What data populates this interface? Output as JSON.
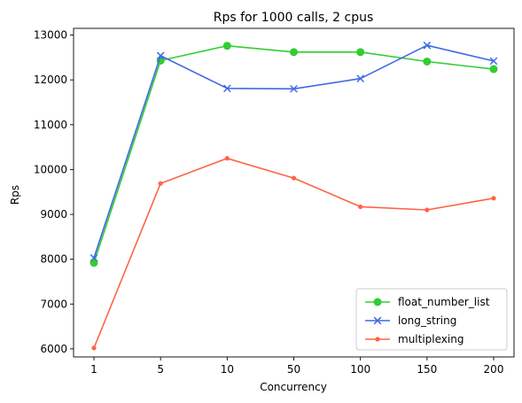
{
  "chart_data": {
    "type": "line",
    "title": "Rps for 1000 calls, 2 cpus",
    "xlabel": "Concurrency",
    "ylabel": "Rps",
    "categories": [
      "1",
      "5",
      "10",
      "50",
      "100",
      "150",
      "200"
    ],
    "ylim": [
      5820,
      13150
    ],
    "yticks": [
      6000,
      7000,
      8000,
      9000,
      10000,
      11000,
      12000,
      13000
    ],
    "grid": false,
    "legend_position": "lower-right",
    "series": [
      {
        "name": "float_number_list",
        "color": "#32CD32",
        "marker": "circle",
        "values": [
          7920,
          12430,
          12760,
          12620,
          12620,
          12410,
          12240
        ]
      },
      {
        "name": "long_string",
        "color": "#4169E1",
        "marker": "x",
        "values": [
          8030,
          12540,
          11810,
          11800,
          12030,
          12770,
          12420
        ]
      },
      {
        "name": "multiplexing",
        "color": "#FF6347",
        "marker": "point",
        "values": [
          6020,
          9690,
          10250,
          9810,
          9170,
          9100,
          9360
        ]
      }
    ]
  }
}
